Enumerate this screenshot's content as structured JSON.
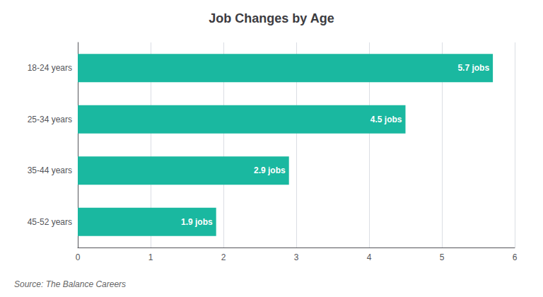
{
  "chart_data": {
    "type": "bar",
    "title": "Job Changes by Age",
    "orientation": "horizontal",
    "categories": [
      "18-24 years",
      "25-34 years",
      "35-44 years",
      "45-52 years"
    ],
    "values": [
      5.7,
      4.5,
      2.9,
      1.9
    ],
    "value_labels": [
      "5.7 jobs",
      "4.5 jobs",
      "2.9 jobs",
      "1.9 jobs"
    ],
    "data_labels": true,
    "color": "#1ab8a0",
    "xlim": [
      0,
      6
    ],
    "xticks": [
      0,
      1,
      2,
      3,
      4,
      5,
      6
    ],
    "grid": true,
    "annotations": [
      "Source: The Balance Careers"
    ]
  }
}
